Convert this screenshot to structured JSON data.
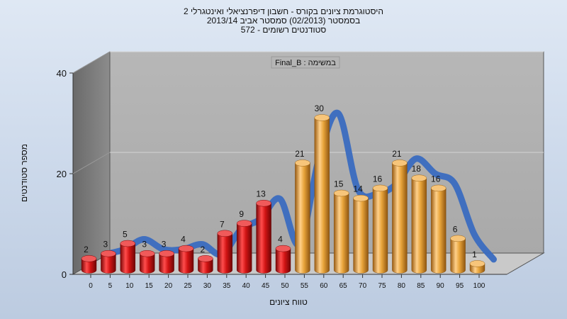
{
  "titles": [
    "היסטוגרמת ציונים בקורס - חשבון דיפרנציאלי ואינטגרלי 2",
    "בסמסטר (02/2013) סמסטר אביב 2013/14",
    "סטודנטים רשומים - 572"
  ],
  "chart_data": {
    "type": "bar",
    "subtitle": "במשימה : Final_B",
    "xlabel": "טווח ציונים",
    "ylabel": "מספר סטודנטים",
    "ylim": [
      0,
      40
    ],
    "yticks": [
      "0",
      "20",
      "40"
    ],
    "categories": [
      "0",
      "5",
      "10",
      "15",
      "20",
      "25",
      "30",
      "35",
      "40",
      "45",
      "50",
      "55",
      "60",
      "65",
      "70",
      "75",
      "80",
      "85",
      "90",
      "95",
      "100"
    ],
    "values": [
      2,
      3,
      5,
      3,
      3,
      4,
      2,
      7,
      9,
      13,
      4,
      21,
      30,
      15,
      14,
      16,
      21,
      18,
      16,
      6,
      1
    ],
    "threshold_category": "55",
    "colors": {
      "failing": "#d21414",
      "passing": "#e8a43a",
      "curve": "#3a6cc0"
    },
    "has_smoothed_curve": true,
    "grid": true
  }
}
